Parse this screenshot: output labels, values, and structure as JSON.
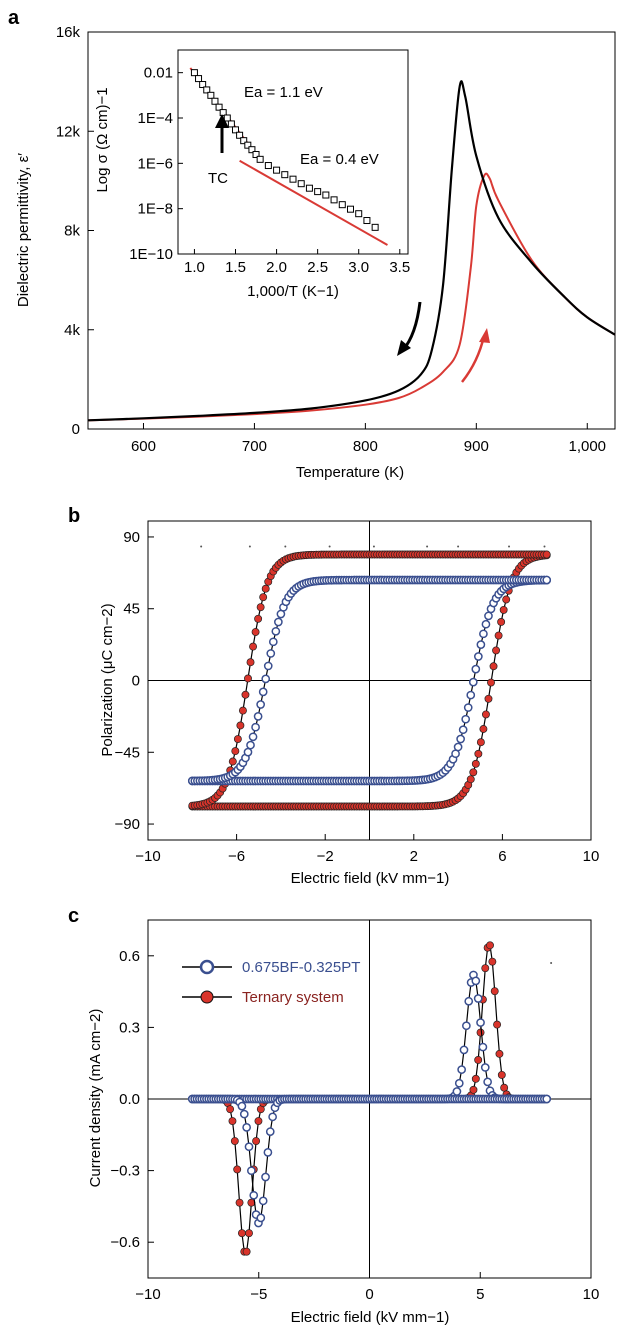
{
  "panels": {
    "a": {
      "letter": "a",
      "ylabel": "Dielectric permittivity, ε′",
      "xlabel": "Temperature (K)",
      "x_ticks": [
        "600",
        "700",
        "800",
        "900",
        "1,000"
      ],
      "y_ticks": [
        "0",
        "4k",
        "8k",
        "12k",
        "16k"
      ],
      "inset": {
        "ylabel": "Log σ (Ω cm)−1",
        "xlabel": "1,000/T (K−1)",
        "x_ticks": [
          "1.0",
          "1.5",
          "2.0",
          "2.5",
          "3.0",
          "3.5"
        ],
        "y_ticks": [
          "0.01",
          "1E−4",
          "1E−6",
          "1E−8",
          "1E−10"
        ],
        "ea_high": "Ea = 1.1 eV",
        "ea_low": "Ea = 0.4 eV",
        "tc_label": "TC"
      }
    },
    "b": {
      "letter": "b",
      "ylabel": "Polarization (μC cm−2)",
      "xlabel": "Electric field (kV mm−1)",
      "x_ticks": [
        "−10",
        "−6",
        "−2",
        "2",
        "6",
        "10"
      ],
      "y_ticks": [
        "90",
        "45",
        "0",
        "−45",
        "−90"
      ]
    },
    "c": {
      "letter": "c",
      "ylabel": "Current density (mA cm−2)",
      "xlabel": "Electric field (kV mm−1)",
      "x_ticks": [
        "−10",
        "−5",
        "0",
        "5",
        "10"
      ],
      "y_ticks": [
        "0.6",
        "0.3",
        "0.0",
        "−0.3",
        "−0.6"
      ],
      "legend": [
        "0.675BF-0.325PT",
        "Ternary system"
      ]
    }
  },
  "colors": {
    "black": "#000000",
    "red": "#d93a35",
    "blue_edge": "#3a4f8f",
    "red_fill": "#d9342b",
    "legend_blue_text": "#3a4f8f",
    "legend_red_text": "#8a2320"
  },
  "chart_data": [
    {
      "type": "line",
      "title": "",
      "xlabel": "Temperature (K)",
      "ylabel": "Dielectric permittivity, ε′",
      "xlim": [
        550,
        1025
      ],
      "ylim": [
        0,
        16000
      ],
      "series": [
        {
          "x": [
            550,
            600,
            650,
            700,
            750,
            800,
            830,
            850,
            860,
            870,
            878,
            885,
            890,
            900,
            920,
            950,
            980,
            1000,
            1025
          ],
          "y": [
            350,
            430,
            530,
            650,
            820,
            1150,
            1550,
            2200,
            3200,
            5800,
            10500,
            13800,
            13400,
            11000,
            8500,
            6700,
            5300,
            4500,
            3800
          ]
        },
        {
          "x": [
            550,
            600,
            650,
            700,
            750,
            800,
            830,
            850,
            870,
            885,
            895,
            900,
            907,
            912,
            920,
            950,
            980,
            1000,
            1025
          ],
          "y": [
            350,
            420,
            500,
            600,
            740,
            980,
            1250,
            1650,
            2300,
            3400,
            6500,
            9000,
            10200,
            10100,
            9200,
            6800,
            5300,
            4500,
            3800
          ]
        }
      ]
    },
    {
      "type": "line",
      "title": "",
      "xlabel": "1,000/T (K−1)",
      "ylabel": "Log σ (Ω cm)−1",
      "x_scale": "linear",
      "y_scale": "log",
      "xlim": [
        0.8,
        3.6
      ],
      "ylim": [
        1e-10,
        0.1
      ],
      "series": [
        {
          "x": [
            1.0,
            1.1,
            1.2,
            1.3,
            1.4,
            1.5,
            1.6,
            1.7,
            1.8,
            1.9,
            2.0,
            2.2,
            2.4,
            2.6,
            2.8,
            3.0,
            3.2
          ],
          "y": [
            0.01,
            0.003,
            0.001,
            0.0003,
            0.0001,
            3e-05,
            1e-05,
            4e-06,
            1.5e-06,
            8e-07,
            5e-07,
            2e-07,
            8e-08,
            4e-08,
            1.5e-08,
            6e-09,
            1.5e-09
          ]
        }
      ]
    },
    {
      "type": "scatter",
      "title": "",
      "xlabel": "Electric field (kV mm−1)",
      "ylabel": "Polarization (μC cm−2)",
      "xlim": [
        -10,
        10
      ],
      "ylim": [
        -100,
        100
      ],
      "series": [
        {
          "marker": "open-blue",
          "params": {
            "saturation": 63,
            "coercive": 4.7,
            "width": 0.22
          }
        },
        {
          "marker": "filled-red",
          "params": {
            "saturation": 79,
            "coercive": 5.5,
            "width": 0.22
          }
        }
      ]
    },
    {
      "type": "scatter",
      "title": "",
      "xlabel": "Electric field (kV mm−1)",
      "ylabel": "Current density (mA cm−2)",
      "xlim": [
        -10,
        10
      ],
      "ylim": [
        -0.75,
        0.75
      ],
      "series": [
        {
          "name": "0.675BF-0.325PT",
          "marker": "open-blue",
          "peaks": [
            {
              "x": 4.7,
              "y": 0.52,
              "width": 0.45
            },
            {
              "x": -5.0,
              "y": -0.52,
              "width": 0.45
            }
          ]
        },
        {
          "name": "Ternary system",
          "marker": "filled-red",
          "peaks": [
            {
              "x": 5.4,
              "y": 0.65,
              "width": 0.42
            },
            {
              "x": -5.6,
              "y": -0.65,
              "width": 0.42
            }
          ]
        }
      ]
    }
  ]
}
